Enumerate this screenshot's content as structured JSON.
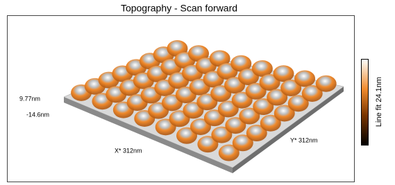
{
  "header": {
    "title": "Topography - Scan forward"
  },
  "plot": {
    "z_max_label": "9.77nm",
    "z_min_label": "-14.6nm",
    "x_label": "X* 312nm",
    "y_label": "Y* 312nm"
  },
  "colorbar": {
    "label": "Line fit 24.1nm"
  }
}
